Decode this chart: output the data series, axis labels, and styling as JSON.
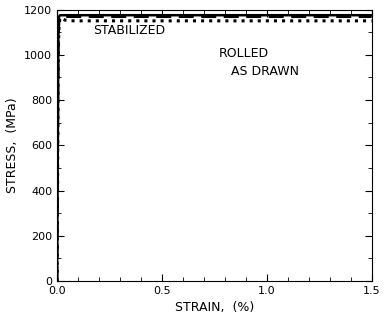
{
  "title": "",
  "xlabel": "STRAIN,  (%)",
  "ylabel": "STRESS,  (MPa)",
  "xlim": [
    0.0,
    1.5
  ],
  "ylim": [
    0,
    1200
  ],
  "xticks": [
    0.0,
    0.5,
    1.0,
    1.5
  ],
  "yticks": [
    0,
    200,
    400,
    600,
    800,
    1000,
    1200
  ],
  "background_color": "#ffffff",
  "stabilized_label": "STABILIZED",
  "rolled_label": "ROLLED",
  "as_drawn_label": "AS DRAWN",
  "line_color": "#000000",
  "annotation_fontsize": 9,
  "label_fontsize": 9,
  "tick_fontsize": 8,
  "stab_annot": [
    0.17,
    1090
  ],
  "rolled_annot": [
    0.77,
    990
  ],
  "drawn_annot": [
    0.83,
    910
  ]
}
